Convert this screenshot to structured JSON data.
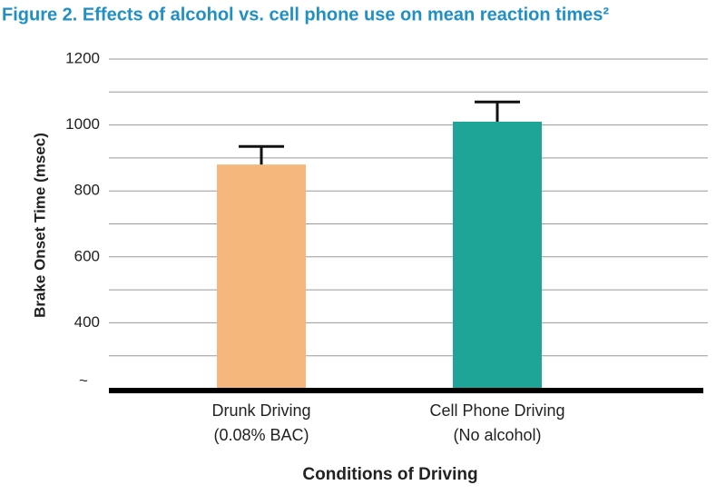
{
  "chart_data": {
    "type": "bar",
    "title": "Figure 2. Effects of alcohol vs. cell phone use on mean reaction times²",
    "y_label": "Brake Onset Time (msec)",
    "x_label": "Conditions of Driving",
    "categories": [
      [
        "Drunk Driving",
        "(0.08% BAC)"
      ],
      [
        "Cell Phone Driving",
        "(No alcohol)"
      ]
    ],
    "values": [
      880,
      1010
    ],
    "errors": [
      55,
      60
    ],
    "colors": [
      "#f5b77c",
      "#1fa597"
    ],
    "ylim": [
      200,
      1200
    ],
    "yticks": [
      400,
      600,
      800,
      1000,
      1200
    ],
    "minor_yticks": [
      300,
      500,
      700,
      900,
      1100
    ],
    "y_break_label": "~",
    "grid": true
  }
}
